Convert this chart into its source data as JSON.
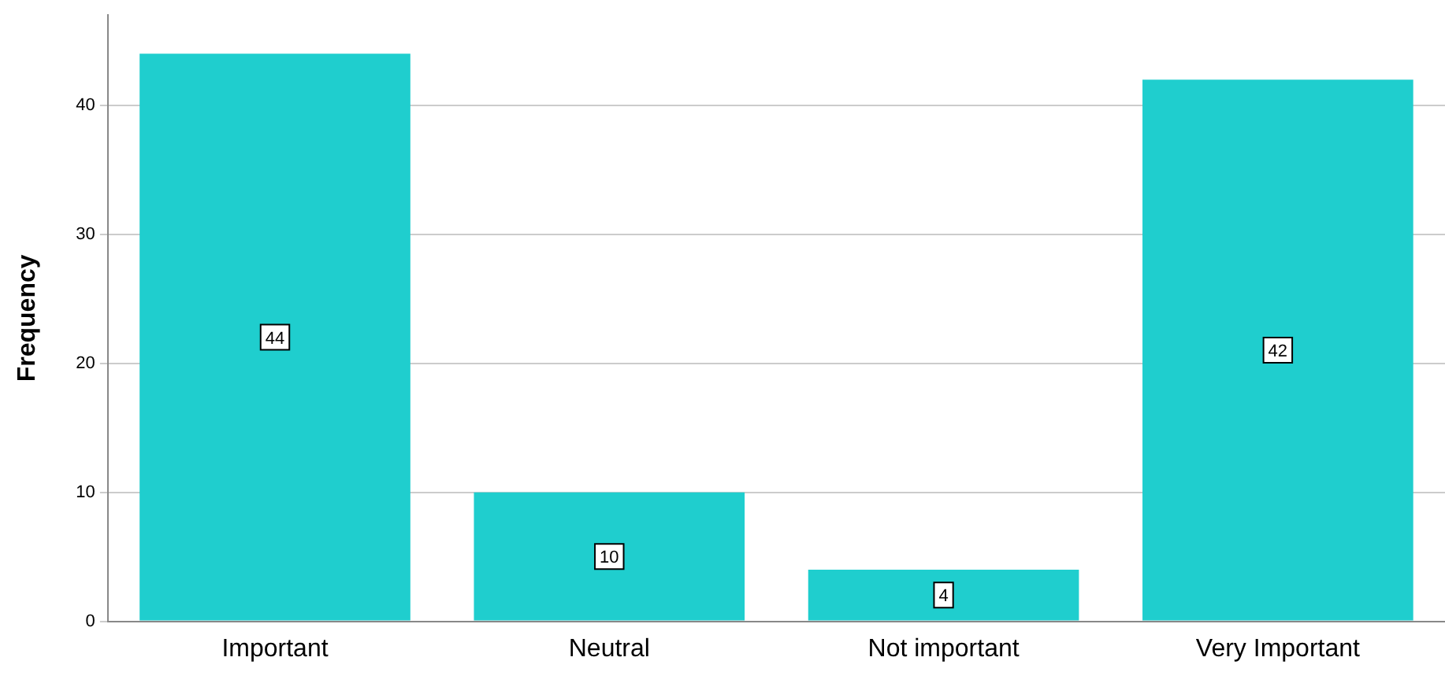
{
  "chart_data": {
    "type": "bar",
    "ylabel": "Frequency",
    "categories": [
      "Important",
      "Neutral",
      "Not important",
      "Very Important"
    ],
    "values": [
      44,
      10,
      4,
      42
    ],
    "color": "#1fcece",
    "ylim": [
      0,
      47
    ],
    "yticks": [
      0,
      10,
      20,
      30,
      40
    ],
    "grid": "y",
    "data_labels": true,
    "legend": false
  }
}
